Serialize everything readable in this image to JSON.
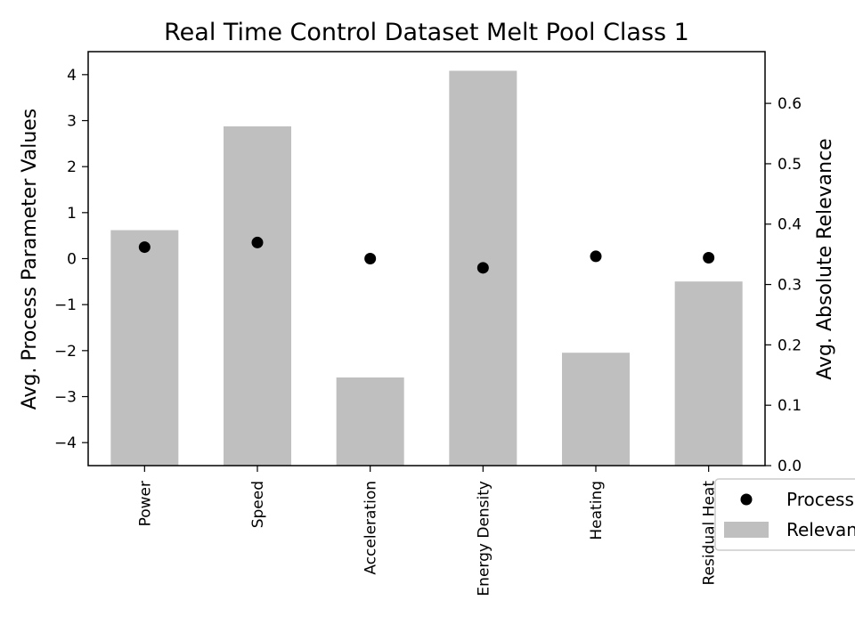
{
  "chart_data": {
    "type": "bar",
    "title": "Real Time Control Dataset Melt Pool Class 1",
    "xlabel": "",
    "ylabel_left": "Avg. Process Parameter Values",
    "ylabel_right": "Avg. Absolute Relevance",
    "categories": [
      "Power",
      "Speed",
      "Acceleration",
      "Energy Density",
      "Heating",
      "Residual Heat"
    ],
    "ylim_left": [
      -4.5,
      4.5
    ],
    "ylim_right": [
      0.0,
      0.6857
    ],
    "yticks_left": [
      -4,
      -3,
      -2,
      -1,
      0,
      1,
      2,
      3,
      4
    ],
    "yticks_left_labels": [
      "−4",
      "−3",
      "−2",
      "−1",
      "0",
      "1",
      "2",
      "3",
      "4"
    ],
    "yticks_right": [
      0.0,
      0.1,
      0.2,
      0.3,
      0.4,
      0.5,
      0.6
    ],
    "yticks_right_labels": [
      "0.0",
      "0.1",
      "0.2",
      "0.3",
      "0.4",
      "0.5",
      "0.6"
    ],
    "series": [
      {
        "name": "Relevance",
        "kind": "bar",
        "axis": "right",
        "color": "#bfbfbf",
        "values": [
          0.39,
          0.562,
          0.146,
          0.654,
          0.187,
          0.305
        ]
      },
      {
        "name": "Process Parameters",
        "kind": "scatter",
        "axis": "left",
        "color": "#000000",
        "values": [
          0.25,
          0.35,
          0.0,
          -0.2,
          0.05,
          0.02
        ]
      }
    ],
    "legend": {
      "placement": "outside-bottom-right",
      "entries": [
        "Process Parameters",
        "Relevance"
      ]
    },
    "grid": false
  }
}
